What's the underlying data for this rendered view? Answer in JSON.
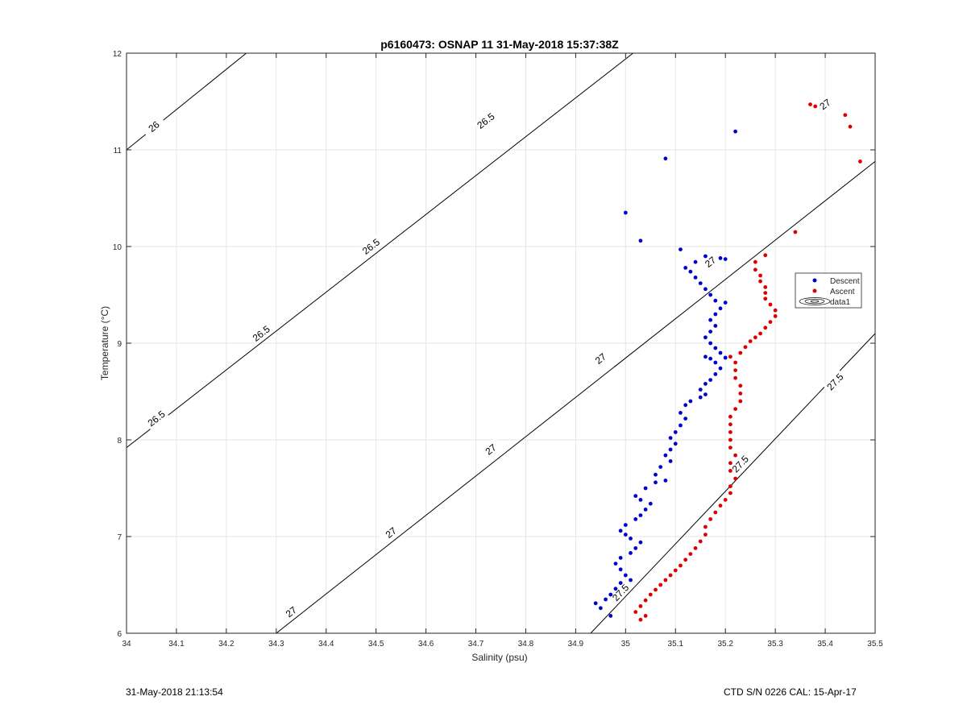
{
  "chart_data": {
    "type": "scatter",
    "title": "p6160473: OSNAP 11 31-May-2018 15:37:38Z",
    "xlabel": "Salinity (psu)",
    "ylabel": "Temperature (°C)",
    "xlim": [
      34,
      35.5
    ],
    "ylim": [
      6,
      12
    ],
    "x_ticks": [
      "34",
      "34.1",
      "34.2",
      "34.3",
      "34.4",
      "34.5",
      "34.6",
      "34.7",
      "34.8",
      "34.9",
      "35",
      "35.1",
      "35.2",
      "35.3",
      "35.4",
      "35.5"
    ],
    "y_ticks": [
      "6",
      "7",
      "8",
      "9",
      "10",
      "11",
      "12"
    ],
    "grid": true,
    "legend_position": "right",
    "legend": [
      "Descent",
      "Ascent",
      "data1"
    ],
    "colors": {
      "descent": "#0000cc",
      "ascent": "#dd0000",
      "contour": "#000000",
      "grid": "#e6e6e6"
    },
    "contours": [
      {
        "label": "26",
        "points": [
          [
            34.0,
            11.0
          ],
          [
            34.24,
            12.0
          ]
        ],
        "label_positions": [
          [
            34.055,
            11.24
          ]
        ]
      },
      {
        "label": "26.5",
        "points": [
          [
            34.0,
            7.92
          ],
          [
            35.5,
            13.95
          ]
        ],
        "label_positions": [
          [
            34.06,
            8.22
          ],
          [
            34.27,
            9.1
          ],
          [
            34.49,
            10.0
          ],
          [
            34.72,
            11.3
          ]
        ]
      },
      {
        "label": "27",
        "points": [
          [
            34.3,
            6.0
          ],
          [
            35.5,
            10.88
          ]
        ],
        "label_positions": [
          [
            34.33,
            6.22
          ],
          [
            34.53,
            7.04
          ],
          [
            34.73,
            7.9
          ],
          [
            34.95,
            8.84
          ],
          [
            35.17,
            9.84
          ],
          [
            35.4,
            11.47
          ]
        ]
      },
      {
        "label": "27.5",
        "points": [
          [
            34.93,
            6.0
          ],
          [
            35.5,
            9.1
          ]
        ],
        "label_positions": [
          [
            34.99,
            6.42
          ],
          [
            35.23,
            7.75
          ],
          [
            35.42,
            8.6
          ]
        ]
      }
    ],
    "series": [
      {
        "name": "Descent",
        "points": [
          [
            34.97,
            6.18
          ],
          [
            34.95,
            6.26
          ],
          [
            34.94,
            6.31
          ],
          [
            34.96,
            6.35
          ],
          [
            34.97,
            6.4
          ],
          [
            34.98,
            6.46
          ],
          [
            34.99,
            6.52
          ],
          [
            35.01,
            6.55
          ],
          [
            35.0,
            6.6
          ],
          [
            34.99,
            6.66
          ],
          [
            34.98,
            6.72
          ],
          [
            34.99,
            6.78
          ],
          [
            35.01,
            6.83
          ],
          [
            35.02,
            6.88
          ],
          [
            35.03,
            6.94
          ],
          [
            35.01,
            6.98
          ],
          [
            35.0,
            7.02
          ],
          [
            34.99,
            7.06
          ],
          [
            35.0,
            7.12
          ],
          [
            35.02,
            7.18
          ],
          [
            35.03,
            7.22
          ],
          [
            35.04,
            7.28
          ],
          [
            35.05,
            7.34
          ],
          [
            35.03,
            7.38
          ],
          [
            35.02,
            7.42
          ],
          [
            35.04,
            7.5
          ],
          [
            35.06,
            7.56
          ],
          [
            35.08,
            7.58
          ],
          [
            35.06,
            7.64
          ],
          [
            35.07,
            7.72
          ],
          [
            35.09,
            7.78
          ],
          [
            35.08,
            7.84
          ],
          [
            35.09,
            7.9
          ],
          [
            35.1,
            7.96
          ],
          [
            35.09,
            8.02
          ],
          [
            35.1,
            8.08
          ],
          [
            35.11,
            8.15
          ],
          [
            35.12,
            8.22
          ],
          [
            35.11,
            8.28
          ],
          [
            35.12,
            8.36
          ],
          [
            35.13,
            8.4
          ],
          [
            35.15,
            8.44
          ],
          [
            35.16,
            8.47
          ],
          [
            35.15,
            8.52
          ],
          [
            35.16,
            8.58
          ],
          [
            35.17,
            8.62
          ],
          [
            35.18,
            8.68
          ],
          [
            35.19,
            8.74
          ],
          [
            35.18,
            8.8
          ],
          [
            35.17,
            8.84
          ],
          [
            35.16,
            8.86
          ],
          [
            35.2,
            8.85
          ],
          [
            35.19,
            8.9
          ],
          [
            35.18,
            8.95
          ],
          [
            35.17,
            9.0
          ],
          [
            35.16,
            9.06
          ],
          [
            35.17,
            9.12
          ],
          [
            35.18,
            9.18
          ],
          [
            35.17,
            9.24
          ],
          [
            35.18,
            9.3
          ],
          [
            35.19,
            9.36
          ],
          [
            35.2,
            9.42
          ],
          [
            35.18,
            9.44
          ],
          [
            35.17,
            9.5
          ],
          [
            35.16,
            9.56
          ],
          [
            35.15,
            9.62
          ],
          [
            35.14,
            9.68
          ],
          [
            35.13,
            9.74
          ],
          [
            35.12,
            9.78
          ],
          [
            35.14,
            9.84
          ],
          [
            35.16,
            9.9
          ],
          [
            35.19,
            9.88
          ],
          [
            35.2,
            9.87
          ],
          [
            35.11,
            9.97
          ],
          [
            35.0,
            10.35
          ],
          [
            35.03,
            10.06
          ],
          [
            35.08,
            10.91
          ],
          [
            35.22,
            11.19
          ]
        ]
      },
      {
        "name": "Ascent",
        "points": [
          [
            35.03,
            6.14
          ],
          [
            35.04,
            6.18
          ],
          [
            35.02,
            6.22
          ],
          [
            35.03,
            6.28
          ],
          [
            35.04,
            6.34
          ],
          [
            35.05,
            6.4
          ],
          [
            35.06,
            6.45
          ],
          [
            35.07,
            6.5
          ],
          [
            35.08,
            6.55
          ],
          [
            35.09,
            6.6
          ],
          [
            35.1,
            6.65
          ],
          [
            35.11,
            6.7
          ],
          [
            35.12,
            6.76
          ],
          [
            35.13,
            6.82
          ],
          [
            35.14,
            6.88
          ],
          [
            35.15,
            6.95
          ],
          [
            35.16,
            7.02
          ],
          [
            35.16,
            7.1
          ],
          [
            35.17,
            7.18
          ],
          [
            35.18,
            7.25
          ],
          [
            35.19,
            7.32
          ],
          [
            35.2,
            7.38
          ],
          [
            35.21,
            7.45
          ],
          [
            35.21,
            7.52
          ],
          [
            35.22,
            7.6
          ],
          [
            35.21,
            7.68
          ],
          [
            35.21,
            7.76
          ],
          [
            35.22,
            7.84
          ],
          [
            35.21,
            7.92
          ],
          [
            35.21,
            8.0
          ],
          [
            35.21,
            8.08
          ],
          [
            35.21,
            8.16
          ],
          [
            35.21,
            8.24
          ],
          [
            35.22,
            8.32
          ],
          [
            35.23,
            8.4
          ],
          [
            35.23,
            8.48
          ],
          [
            35.23,
            8.56
          ],
          [
            35.22,
            8.64
          ],
          [
            35.22,
            8.72
          ],
          [
            35.22,
            8.8
          ],
          [
            35.21,
            8.86
          ],
          [
            35.23,
            8.9
          ],
          [
            35.24,
            8.96
          ],
          [
            35.25,
            9.02
          ],
          [
            35.26,
            9.06
          ],
          [
            35.27,
            9.1
          ],
          [
            35.28,
            9.16
          ],
          [
            35.29,
            9.22
          ],
          [
            35.3,
            9.28
          ],
          [
            35.3,
            9.34
          ],
          [
            35.29,
            9.4
          ],
          [
            35.28,
            9.46
          ],
          [
            35.28,
            9.52
          ],
          [
            35.28,
            9.58
          ],
          [
            35.27,
            9.64
          ],
          [
            35.27,
            9.7
          ],
          [
            35.26,
            9.76
          ],
          [
            35.26,
            9.84
          ],
          [
            35.28,
            9.91
          ],
          [
            35.34,
            10.15
          ],
          [
            35.47,
            10.88
          ],
          [
            35.45,
            11.24
          ],
          [
            35.44,
            11.36
          ],
          [
            35.37,
            11.47
          ],
          [
            35.38,
            11.45
          ]
        ]
      }
    ]
  },
  "footer": {
    "left": "31-May-2018 21:13:54",
    "right": "CTD S/N 0226  CAL: 15-Apr-17"
  }
}
